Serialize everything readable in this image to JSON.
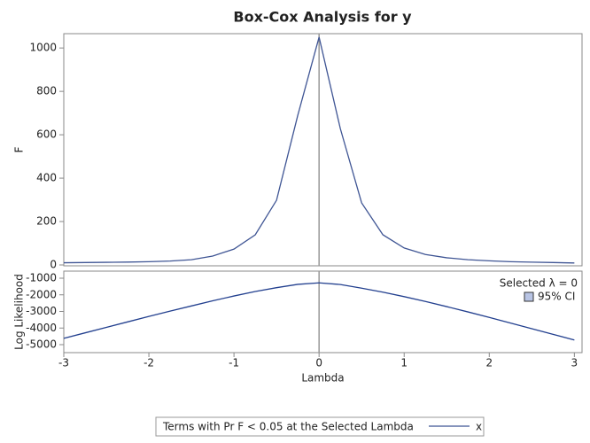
{
  "chart_data": [
    {
      "type": "line",
      "title": "Box-Cox Analysis for y",
      "ylabel": "F",
      "x": [
        -3,
        -2.75,
        -2.5,
        -2.25,
        -2,
        -1.75,
        -1.5,
        -1.25,
        -1,
        -0.75,
        -0.5,
        -0.25,
        0,
        0.25,
        0.5,
        0.75,
        1,
        1.25,
        1.5,
        1.75,
        2,
        2.25,
        2.5,
        2.75,
        3
      ],
      "series": [
        {
          "name": "x",
          "color": "#3f5594",
          "values": [
            10,
            11,
            12,
            13,
            15,
            18,
            24,
            41,
            73,
            139,
            298,
            690,
            1050,
            628,
            286,
            139,
            78,
            48,
            33,
            24,
            19,
            15,
            13,
            11,
            9
          ]
        }
      ],
      "legend_title": "Terms with Pr F < 0.05 at the Selected Lambda",
      "xlim": [
        -3,
        3.09
      ],
      "ylim": [
        -4,
        1066
      ],
      "yticks": [
        0,
        200,
        400,
        600,
        800,
        1000
      ],
      "selected_lambda": 0
    },
    {
      "type": "line",
      "ylabel": "Log Likelihood",
      "xlabel": "Lambda",
      "x": [
        -3,
        -2.75,
        -2.5,
        -2.25,
        -2,
        -1.75,
        -1.5,
        -1.25,
        -1,
        -0.75,
        -0.5,
        -0.25,
        0,
        0.25,
        0.5,
        0.75,
        1,
        1.25,
        1.5,
        1.75,
        2,
        2.25,
        2.5,
        2.75,
        3
      ],
      "series": [
        {
          "color": "#23408f",
          "values": [
            -4620,
            -4290,
            -3960,
            -3630,
            -3300,
            -2980,
            -2670,
            -2360,
            -2070,
            -1800,
            -1570,
            -1370,
            -1280,
            -1380,
            -1600,
            -1840,
            -2110,
            -2400,
            -2710,
            -3030,
            -3360,
            -3700,
            -4040,
            -4380,
            -4720
          ]
        }
      ],
      "xlim": [
        -3,
        3.09
      ],
      "ylim": [
        -5480,
        -573
      ],
      "yticks": [
        -5000,
        -4000,
        -3000,
        -2000,
        -1000
      ],
      "xticks": [
        -3,
        -2,
        -1,
        0,
        1,
        2,
        3
      ],
      "selected_lambda": 0,
      "annotation": "Selected λ = 0",
      "ci_label": "95% CI",
      "ci_color": "#b8c4e4"
    }
  ]
}
